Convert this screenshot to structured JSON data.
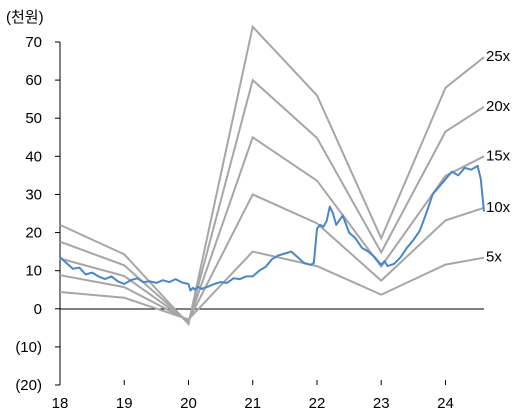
{
  "chart_data": {
    "type": "line",
    "unit_label": "(천원)",
    "ylim": [
      -20,
      70
    ],
    "y_ticks": [
      {
        "value": 70,
        "label": "70"
      },
      {
        "value": 60,
        "label": "60"
      },
      {
        "value": 50,
        "label": "50"
      },
      {
        "value": 40,
        "label": "40"
      },
      {
        "value": 30,
        "label": "30"
      },
      {
        "value": 20,
        "label": "20"
      },
      {
        "value": 10,
        "label": "10"
      },
      {
        "value": 0,
        "label": "0"
      },
      {
        "value": -10,
        "label": "(10)"
      },
      {
        "value": -20,
        "label": "(20)"
      }
    ],
    "xlim": [
      18,
      24.6
    ],
    "x_ticks": [
      {
        "value": 18,
        "label": "18"
      },
      {
        "value": 19,
        "label": "19"
      },
      {
        "value": 20,
        "label": "20"
      },
      {
        "value": 21,
        "label": "21"
      },
      {
        "value": 22,
        "label": "22"
      },
      {
        "value": 23,
        "label": "23"
      },
      {
        "value": 24,
        "label": "24"
      }
    ],
    "bands": [
      {
        "name": "25x",
        "color": "#a6a6a6",
        "x": [
          18,
          19,
          20,
          21,
          22,
          23,
          24,
          24.6
        ],
        "values": [
          22.0,
          14.3,
          -4.0,
          74.0,
          56.0,
          18.5,
          58.0,
          66.0
        ]
      },
      {
        "name": "20x",
        "color": "#a6a6a6",
        "x": [
          18,
          19,
          20,
          21,
          22,
          23,
          24,
          24.6
        ],
        "values": [
          17.6,
          11.4,
          -3.6,
          60.0,
          44.8,
          14.8,
          46.5,
          53.0
        ]
      },
      {
        "name": "15x",
        "color": "#a6a6a6",
        "x": [
          18,
          19,
          20,
          21,
          22,
          23,
          24,
          24.6
        ],
        "values": [
          13.2,
          8.6,
          -3.4,
          45.0,
          33.6,
          11.1,
          34.9,
          40.0
        ]
      },
      {
        "name": "10x",
        "color": "#a6a6a6",
        "x": [
          18,
          19,
          20,
          21,
          22,
          23,
          24,
          24.6
        ],
        "values": [
          8.8,
          5.7,
          -3.1,
          30.0,
          22.4,
          7.4,
          23.2,
          26.5
        ]
      },
      {
        "name": "5x",
        "color": "#a6a6a6",
        "x": [
          18,
          19,
          20,
          21,
          22,
          23,
          24,
          24.6
        ],
        "values": [
          4.4,
          2.9,
          -2.8,
          15.0,
          11.2,
          3.7,
          11.6,
          13.4
        ]
      }
    ],
    "price": {
      "color": "#4a86c8",
      "x": [
        18.0,
        18.1,
        18.2,
        18.3,
        18.4,
        18.5,
        18.6,
        18.7,
        18.8,
        18.9,
        19.0,
        19.1,
        19.2,
        19.3,
        19.4,
        19.5,
        19.6,
        19.7,
        19.8,
        19.9,
        20.0,
        20.03,
        20.07,
        20.1,
        20.15,
        20.2,
        20.3,
        20.4,
        20.5,
        20.6,
        20.7,
        20.8,
        20.9,
        21.0,
        21.1,
        21.2,
        21.3,
        21.4,
        21.5,
        21.6,
        21.7,
        21.8,
        21.9,
        21.95,
        22.0,
        22.05,
        22.1,
        22.15,
        22.2,
        22.25,
        22.3,
        22.4,
        22.5,
        22.6,
        22.7,
        22.8,
        22.9,
        23.0,
        23.05,
        23.1,
        23.2,
        23.3,
        23.4,
        23.5,
        23.6,
        23.7,
        23.8,
        23.9,
        24.0,
        24.1,
        24.2,
        24.3,
        24.4,
        24.5,
        24.55,
        24.6
      ],
      "values": [
        13.5,
        12.0,
        10.5,
        10.8,
        9.0,
        9.5,
        8.5,
        7.8,
        8.5,
        7.2,
        6.5,
        7.5,
        8.0,
        7.0,
        7.2,
        6.8,
        7.5,
        7.0,
        7.8,
        6.9,
        6.5,
        4.8,
        5.5,
        5.0,
        5.8,
        5.2,
        5.8,
        6.5,
        7.0,
        6.8,
        8.0,
        7.8,
        8.5,
        8.5,
        10.0,
        11.0,
        13.0,
        14.0,
        14.5,
        15.0,
        13.5,
        12.0,
        11.5,
        12.0,
        21.0,
        22.0,
        21.5,
        23.0,
        26.8,
        25.0,
        22.0,
        24.5,
        20.0,
        18.5,
        16.0,
        15.0,
        13.5,
        11.5,
        12.5,
        11.2,
        11.8,
        13.5,
        16.0,
        18.0,
        20.5,
        25.0,
        30.0,
        32.0,
        34.0,
        36.0,
        35.0,
        37.0,
        36.5,
        37.5,
        34.0,
        25.5
      ]
    }
  }
}
